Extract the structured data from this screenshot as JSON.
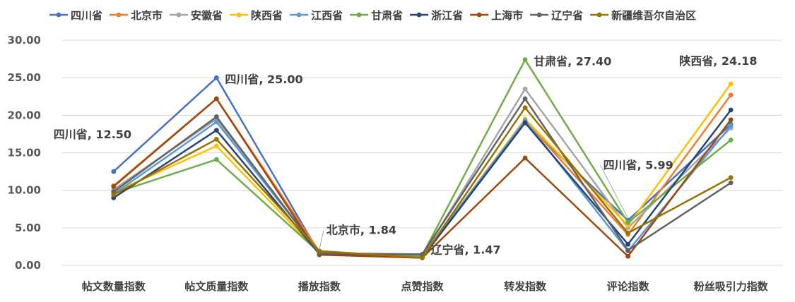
{
  "chart_data": {
    "type": "line",
    "title": "",
    "xlabel": "",
    "ylabel": "",
    "ylim": [
      0,
      30
    ],
    "yticks": [
      "0.00",
      "5.00",
      "10.00",
      "15.00",
      "20.00",
      "25.00",
      "30.00"
    ],
    "grid": true,
    "legend_position": "top",
    "categories": [
      "帖文数量指数",
      "帖文质量指数",
      "播放指数",
      "点赞指数",
      "转发指数",
      "评论指数",
      "粉丝吸引力指数"
    ],
    "series": [
      {
        "name": "四川省",
        "color": "#4472C4",
        "values": [
          12.5,
          25.0,
          1.6,
          1.15,
          19.0,
          5.99,
          18.8
        ]
      },
      {
        "name": "北京市",
        "color": "#ED7D31",
        "values": [
          10.6,
          22.2,
          1.84,
          1.1,
          19.3,
          4.1,
          22.7
        ]
      },
      {
        "name": "安徽省",
        "color": "#A5A5A5",
        "values": [
          10.1,
          19.5,
          1.7,
          1.2,
          23.5,
          5.0,
          18.3
        ]
      },
      {
        "name": "陕西省",
        "color": "#FFC000",
        "values": [
          9.7,
          15.9,
          1.65,
          1.15,
          19.5,
          5.3,
          24.18
        ]
      },
      {
        "name": "江西省",
        "color": "#5B9BD5",
        "values": [
          9.5,
          19.1,
          1.75,
          1.2,
          19.3,
          1.9,
          18.6
        ]
      },
      {
        "name": "甘肃省",
        "color": "#70AD47",
        "values": [
          9.6,
          14.1,
          1.7,
          1.35,
          27.4,
          5.7,
          16.7
        ]
      },
      {
        "name": "浙江省",
        "color": "#264478",
        "values": [
          9.0,
          18.0,
          1.5,
          1.0,
          19.0,
          2.8,
          20.7
        ]
      },
      {
        "name": "上海市",
        "color": "#9E480E",
        "values": [
          10.5,
          22.2,
          1.4,
          1.0,
          14.3,
          1.2,
          19.4
        ]
      },
      {
        "name": "辽宁省",
        "color": "#636363",
        "values": [
          9.8,
          19.8,
          1.6,
          1.47,
          22.2,
          2.0,
          11.0
        ]
      },
      {
        "name": "新疆维吾尔自治区",
        "color": "#997300",
        "values": [
          9.4,
          16.8,
          1.9,
          1.0,
          21.0,
          4.3,
          11.7
        ]
      }
    ],
    "annotations": [
      {
        "text": "四川省, 12.50",
        "series": 0,
        "category": 0
      },
      {
        "text": "四川省, 25.00",
        "series": 0,
        "category": 1
      },
      {
        "text": "北京市, 1.84",
        "series": 1,
        "category": 2
      },
      {
        "text": "辽宁省, 1.47",
        "series": 8,
        "category": 3
      },
      {
        "text": "甘肃省, 27.40",
        "series": 5,
        "category": 4
      },
      {
        "text": "四川省, 5.99",
        "series": 0,
        "category": 5
      },
      {
        "text": "陕西省, 24.18",
        "series": 3,
        "category": 6
      }
    ]
  }
}
